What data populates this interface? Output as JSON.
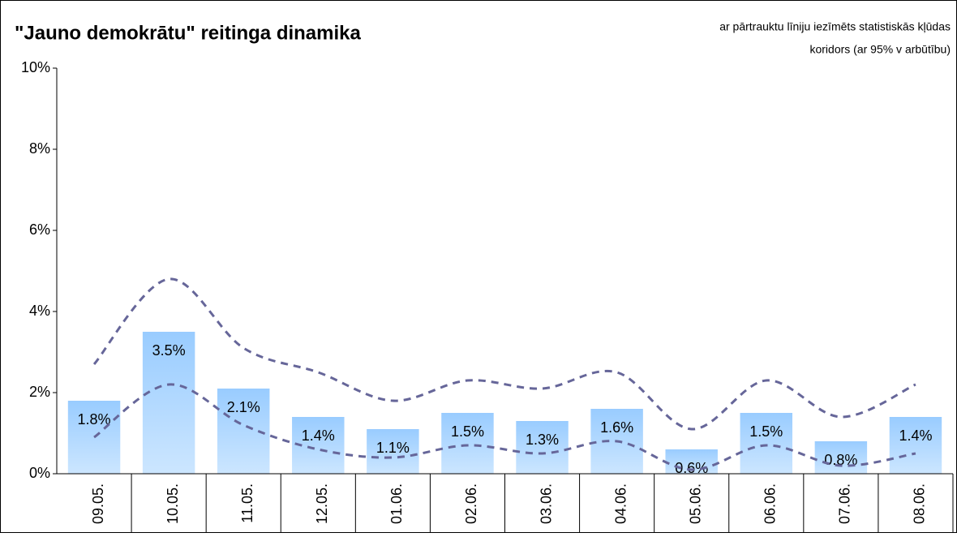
{
  "chart_data": {
    "type": "bar",
    "title": "\"Jauno demokrātu\" reitinga dinamika",
    "subtitle": [
      "ar pārtrauktu līniju iezīmēts statistiskās kļūdas",
      "koridors (ar 95% v arbūtību)"
    ],
    "categories": [
      "09.05.",
      "10.05.",
      "11.05.",
      "12.05.",
      "01.06.",
      "02.06.",
      "03.06.",
      "04.06.",
      "05.06.",
      "06.06.",
      "07.06.",
      "08.06."
    ],
    "values": [
      1.8,
      3.5,
      2.1,
      1.4,
      1.1,
      1.5,
      1.3,
      1.6,
      0.6,
      1.5,
      0.8,
      1.4
    ],
    "value_labels": [
      "1.8%",
      "3.5%",
      "2.1%",
      "1.4%",
      "1.1%",
      "1.5%",
      "1.3%",
      "1.6%",
      "0.6%",
      "1.5%",
      "0.8%",
      "1.4%"
    ],
    "color": "#99ccff",
    "bounds": [
      {
        "values": [
          2.7,
          4.8,
          3.1,
          2.5,
          1.8,
          2.3,
          2.1,
          2.5,
          1.1,
          2.3,
          1.4,
          2.2
        ],
        "color": "#666699"
      },
      {
        "values": [
          0.9,
          2.2,
          1.2,
          0.6,
          0.4,
          0.7,
          0.5,
          0.8,
          0.1,
          0.7,
          0.2,
          0.5
        ],
        "color": "#666699"
      }
    ],
    "ylim": [
      0,
      10
    ],
    "yticks": [
      {
        "value": 0,
        "label": "0%"
      },
      {
        "value": 2,
        "label": "2%"
      },
      {
        "value": 4,
        "label": "4%"
      },
      {
        "value": 6,
        "label": "6%"
      },
      {
        "value": 8,
        "label": "8%"
      },
      {
        "value": 10,
        "label": "10%"
      }
    ]
  }
}
